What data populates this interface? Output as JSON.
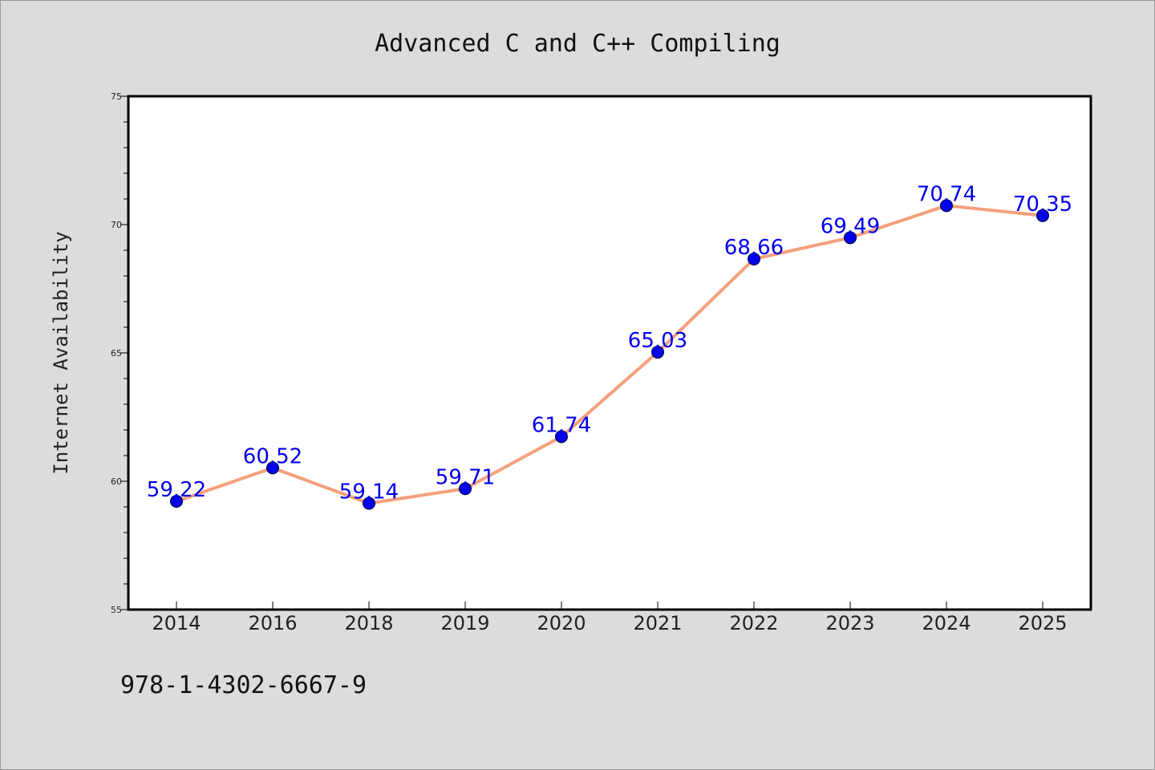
{
  "chart_data": {
    "type": "line",
    "title": "Advanced C and C++ Compiling",
    "xlabel": "",
    "ylabel": "Internet Availability",
    "categories": [
      "2014",
      "2016",
      "2018",
      "2019",
      "2020",
      "2021",
      "2022",
      "2023",
      "2024",
      "2025"
    ],
    "series": [
      {
        "values": [
          59.22,
          60.52,
          59.14,
          59.71,
          61.74,
          65.03,
          68.66,
          69.49,
          70.74,
          70.35
        ],
        "data_labels": [
          "59.22",
          "60.52",
          "59.14",
          "59.71",
          "61.74",
          "65.03",
          "68.66",
          "69.49",
          "70.74",
          "70.35"
        ],
        "line_color": "#f4a07c",
        "marker_color": "#0000ee"
      }
    ],
    "ylim": [
      55,
      75
    ],
    "yticks": [
      "55",
      "60",
      "65",
      "70",
      "75"
    ],
    "grid": false,
    "legend": "none"
  },
  "footer": {
    "isbn": "978-1-4302-6667-9"
  },
  "colors": {
    "background": "#dcdcdc",
    "plot_background": "#ffffff",
    "axis": "#000000",
    "data_label": "#0000ee"
  }
}
